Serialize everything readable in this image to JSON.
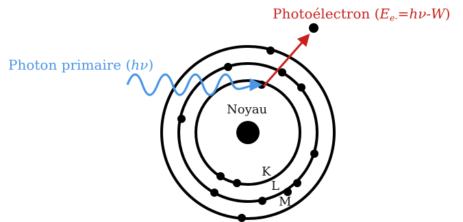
{
  "colors": {
    "photon": "#4b95e6",
    "electron": "#c8201c",
    "structure": "#000000"
  },
  "photon": {
    "label_text": "Photon primaire (",
    "label_math": "hν",
    "label_close": ")"
  },
  "photoelectron": {
    "label_text": "Photoélectron (",
    "label_sym": "E",
    "label_sub": "e-",
    "label_eq": "=",
    "label_math": "hν",
    "label_tail": "-",
    "label_w": "W",
    "label_close": ")"
  },
  "nucleus": {
    "label": "Noyau"
  },
  "shells": [
    {
      "name": "K",
      "electrons": 2
    },
    {
      "name": "L",
      "electrons": 8
    },
    {
      "name": "M",
      "electrons": 4
    }
  ]
}
